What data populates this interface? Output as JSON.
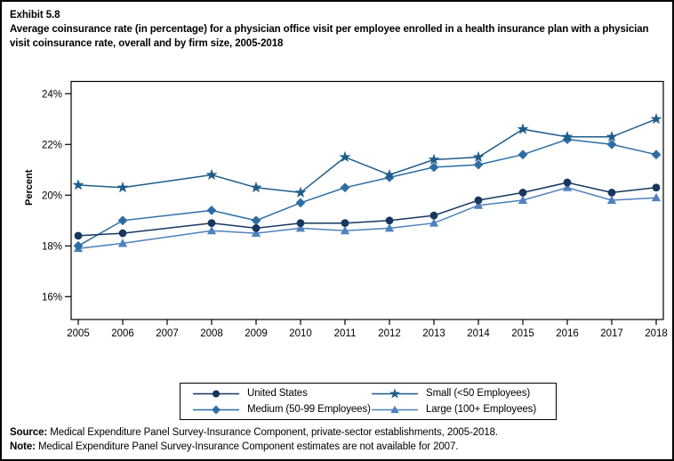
{
  "header": {
    "exhibit": "Exhibit 5.8",
    "title": "Average coinsurance rate (in percentage) for a physician office visit per employee enrolled in a health insurance plan with a physician visit coinsurance rate, overall and by firm size, 2005-2018"
  },
  "chart_data": {
    "type": "line",
    "categories": [
      "2005",
      "2006",
      "2007",
      "2008",
      "2009",
      "2010",
      "2011",
      "2012",
      "2013",
      "2014",
      "2015",
      "2016",
      "2017",
      "2018"
    ],
    "y_axis": {
      "label": "Percent",
      "tick_labels": [
        "16%",
        "18%",
        "20%",
        "22%",
        "24%"
      ],
      "tick_values": [
        16,
        18,
        20,
        22,
        24
      ],
      "range": [
        15.1,
        24.5
      ]
    },
    "grid": "off",
    "legend_position": "bottom",
    "series": [
      {
        "name": "United States",
        "marker": "circle",
        "color": "#17375e",
        "values": [
          18.4,
          18.5,
          null,
          18.9,
          18.7,
          18.9,
          18.9,
          19.0,
          19.2,
          19.8,
          20.1,
          20.5,
          20.1,
          20.3
        ]
      },
      {
        "name": "Small (<50 Employees)",
        "marker": "star",
        "color": "#1f5c8a",
        "values": [
          20.4,
          20.3,
          null,
          20.8,
          20.3,
          20.1,
          21.5,
          20.8,
          21.4,
          21.5,
          22.6,
          22.3,
          22.3,
          23.0
        ]
      },
      {
        "name": "Medium (50-99 Employees)",
        "marker": "diamond",
        "color": "#2e6da4",
        "values": [
          18.0,
          19.0,
          null,
          19.4,
          19.0,
          19.7,
          20.3,
          20.7,
          21.1,
          21.2,
          21.6,
          22.2,
          22.0,
          21.6
        ]
      },
      {
        "name": "Large (100+ Employees)",
        "marker": "triangle",
        "color": "#4f81bd",
        "values": [
          17.9,
          18.1,
          null,
          18.6,
          18.5,
          18.7,
          18.6,
          18.7,
          18.9,
          19.6,
          19.8,
          20.3,
          19.8,
          19.9
        ]
      }
    ]
  },
  "footer": {
    "source_label": "Source:",
    "source_text": " Medical Expenditure Panel Survey-Insurance Component, private-sector establishments, 2005-2018.",
    "note_label": "Note:",
    "note_text": " Medical Expenditure Panel Survey-Insurance Component estimates are not available for 2007."
  }
}
